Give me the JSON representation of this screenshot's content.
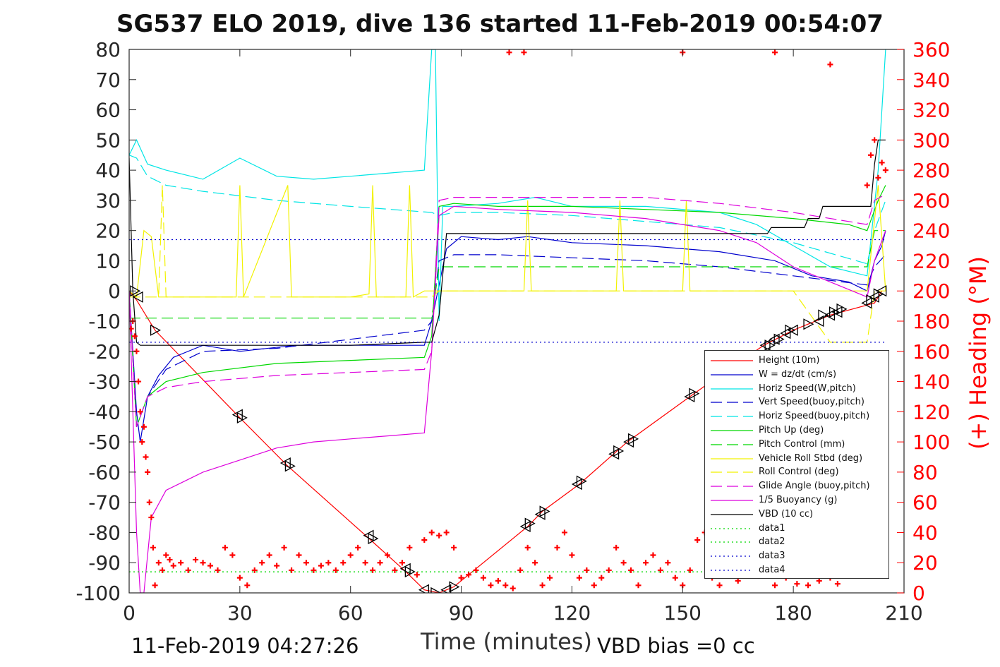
{
  "title": "SG537 ELO 2019, dive 136 started 11-Feb-2019 00:54:07",
  "xlabel": "Time (minutes)",
  "ylabel_right": "(+) Heading (°M)",
  "footer_left": "11-Feb-2019 04:27:26",
  "footer_right": "VBD bias =0 cc",
  "chart_data": {
    "type": "line",
    "title": "SG537 ELO 2019, dive 136 started 11-Feb-2019 00:54:07",
    "xlabel": "Time (minutes)",
    "ylabel": "",
    "ylabel_right": "(+) Heading (°M)",
    "xlim": [
      0,
      210
    ],
    "ylim": [
      -100,
      80
    ],
    "ylim_right": [
      0,
      360
    ],
    "xticks": [
      0,
      30,
      60,
      90,
      120,
      150,
      180,
      210
    ],
    "yticks": [
      -100,
      -90,
      -80,
      -70,
      -60,
      -50,
      -40,
      -30,
      -20,
      -10,
      0,
      10,
      20,
      30,
      40,
      50,
      60,
      70,
      80
    ],
    "yticks_right": [
      0,
      20,
      40,
      60,
      80,
      100,
      120,
      140,
      160,
      180,
      200,
      220,
      240,
      260,
      280,
      300,
      320,
      340,
      360
    ],
    "grid": false,
    "legend_position": "bottom-right",
    "colors": {
      "red": "#ff0000",
      "blue": "#0000cd",
      "cyan": "#00e5e5",
      "green": "#00d800",
      "yellow": "#f2f200",
      "magenta": "#dd00dd",
      "black": "#000000"
    },
    "series": [
      {
        "name": "Height (10m)",
        "color": "#ff0000",
        "style": "solid",
        "x": [
          0,
          2,
          7,
          30,
          43,
          65,
          75,
          80,
          84,
          88,
          108,
          112,
          122,
          135,
          152,
          160,
          172,
          180,
          190,
          202,
          204
        ],
        "y": [
          0,
          -3,
          -13,
          -42,
          -58,
          -82,
          -93,
          -99,
          -100,
          -98,
          -78,
          -73,
          -64,
          -50,
          -35,
          -28,
          -18,
          -13,
          -8,
          -4,
          0
        ]
      },
      {
        "name": "W = dz/dt (cm/s)",
        "color": "#0000cd",
        "style": "solid",
        "x": [
          0,
          1,
          2,
          3,
          5,
          8,
          12,
          20,
          30,
          45,
          60,
          75,
          80,
          82,
          84,
          86,
          90,
          100,
          108,
          120,
          140,
          160,
          175,
          185,
          195,
          200,
          202,
          204,
          205
        ],
        "y": [
          0,
          -20,
          -40,
          -50,
          -35,
          -28,
          -22,
          -18,
          -20,
          -18,
          -18,
          -18,
          -18,
          -10,
          2,
          14,
          18,
          17,
          18,
          16,
          15,
          13,
          10,
          5,
          3,
          0,
          10,
          15,
          20
        ]
      },
      {
        "name": "Horiz Speed(W,pitch)",
        "color": "#00e5e5",
        "style": "solid",
        "x": [
          0,
          2,
          5,
          10,
          20,
          30,
          40,
          50,
          60,
          70,
          80,
          82,
          83,
          84,
          85,
          88,
          100,
          110,
          120,
          140,
          160,
          170,
          180,
          190,
          200,
          203,
          205
        ],
        "y": [
          45,
          50,
          42,
          40,
          37,
          44,
          38,
          37,
          38,
          39,
          40,
          80,
          80,
          -10,
          28,
          28,
          29,
          31,
          28,
          28,
          26,
          22,
          15,
          8,
          5,
          40,
          80
        ]
      },
      {
        "name": "Vert Speed(buoy,pitch)",
        "color": "#0000cd",
        "style": "dashed",
        "x": [
          0,
          2,
          5,
          10,
          20,
          40,
          60,
          80,
          82,
          84,
          88,
          100,
          120,
          140,
          160,
          180,
          200,
          202,
          205
        ],
        "y": [
          0,
          -45,
          -35,
          -26,
          -20,
          -19,
          -16,
          -13,
          -10,
          10,
          12,
          12,
          11,
          10,
          8,
          5,
          2,
          8,
          12
        ]
      },
      {
        "name": "Horiz Speed(buoy,pitch)",
        "color": "#00e5e5",
        "style": "dashed",
        "x": [
          0,
          2,
          5,
          10,
          20,
          40,
          60,
          82,
          84,
          88,
          100,
          120,
          140,
          160,
          180,
          200,
          202,
          205
        ],
        "y": [
          45,
          44,
          38,
          35,
          33,
          30,
          28,
          26,
          25,
          26,
          26,
          25,
          23,
          21,
          16,
          9,
          20,
          30
        ]
      },
      {
        "name": "Pitch Up (deg)",
        "color": "#00d800",
        "style": "solid",
        "x": [
          0,
          2,
          5,
          10,
          20,
          40,
          60,
          80,
          82,
          84,
          88,
          100,
          120,
          140,
          160,
          180,
          195,
          200,
          203,
          205
        ],
        "y": [
          0,
          -45,
          -35,
          -30,
          -27,
          -24,
          -23,
          -22,
          -15,
          28,
          29,
          28,
          28,
          27,
          26,
          24,
          22,
          20,
          30,
          35
        ]
      },
      {
        "name": "Pitch Control (mm)",
        "color": "#00d800",
        "style": "dashed",
        "x": [
          0,
          5,
          10,
          80,
          82,
          84,
          88,
          100,
          120,
          180,
          200,
          202,
          205
        ],
        "y": [
          -9,
          -9,
          -9,
          -9,
          -9,
          8,
          8,
          8,
          8,
          8,
          8,
          20,
          20
        ]
      },
      {
        "name": "Vehicle Roll Stbd (deg)",
        "color": "#f2f200",
        "style": "solid",
        "x": [
          0,
          2,
          4,
          6,
          8,
          20,
          29,
          30,
          31,
          43,
          44,
          60,
          65,
          66,
          67,
          75,
          76,
          77,
          80,
          82,
          84,
          88,
          100,
          107,
          108,
          109,
          120,
          132,
          133,
          134,
          150,
          151,
          152,
          153,
          170,
          175,
          180,
          190,
          200,
          203,
          205
        ],
        "y": [
          0,
          -2,
          20,
          18,
          -2,
          -2,
          -2,
          35,
          -2,
          35,
          -2,
          -2,
          -1,
          35,
          -2,
          -2,
          35,
          -2,
          0,
          0,
          0,
          0,
          0,
          0,
          30,
          0,
          0,
          0,
          30,
          0,
          0,
          30,
          0,
          0,
          0,
          0,
          0,
          0,
          0,
          35,
          0
        ]
      },
      {
        "name": "Roll Control (deg)",
        "color": "#f2f200",
        "style": "dashed",
        "x": [
          0,
          5,
          8,
          9,
          10,
          80,
          82,
          84,
          88,
          100,
          120,
          180,
          190,
          195,
          200,
          202,
          205
        ],
        "y": [
          -2,
          -2,
          -2,
          35,
          -2,
          -2,
          -2,
          0,
          0,
          0,
          0,
          0,
          -17,
          -17,
          -17,
          0,
          0
        ]
      },
      {
        "name": "Glide Angle (buoy,pitch)",
        "color": "#dd00dd",
        "style": "dashed",
        "x": [
          0,
          2,
          5,
          10,
          20,
          40,
          60,
          80,
          82,
          84,
          88,
          100,
          120,
          140,
          160,
          180,
          200,
          202,
          205
        ],
        "y": [
          0,
          -45,
          -35,
          -32,
          -30,
          -28,
          -27,
          -26,
          -20,
          30,
          31,
          31,
          31,
          31,
          29,
          26,
          22,
          30,
          32
        ]
      },
      {
        "name": "1/5 Buoyancy (g)",
        "color": "#dd00dd",
        "style": "solid",
        "x": [
          0,
          2,
          3,
          4,
          6,
          10,
          20,
          30,
          40,
          50,
          60,
          70,
          80,
          82,
          84,
          88,
          100,
          120,
          140,
          160,
          170,
          180,
          190,
          200,
          202,
          205
        ],
        "y": [
          0,
          -80,
          -100,
          -100,
          -75,
          -66,
          -60,
          -56,
          -52,
          -50,
          -49,
          -48,
          -47,
          -20,
          25,
          28,
          27,
          26,
          24,
          20,
          16,
          8,
          3,
          -2,
          10,
          20
        ]
      },
      {
        "name": "VBD (10 cc)",
        "color": "#000000",
        "style": "solid",
        "x": [
          0,
          1,
          2,
          3,
          5,
          10,
          40,
          60,
          80,
          82,
          84,
          86,
          108,
          120,
          160,
          170,
          173,
          174,
          183,
          184,
          187,
          188,
          200,
          201,
          202,
          203,
          205
        ],
        "y": [
          44,
          0,
          -17,
          -18,
          -18,
          -18,
          -18,
          -18,
          -17,
          -17,
          -8,
          19,
          19,
          19,
          19,
          19,
          19,
          21,
          21,
          24,
          24,
          28,
          28,
          28,
          42,
          50,
          50
        ]
      },
      {
        "name": "data1",
        "color": "#00d800",
        "style": "dotted",
        "x": [
          0,
          205
        ],
        "y": [
          -93,
          -93
        ]
      },
      {
        "name": "data2",
        "color": "#00d800",
        "style": "dotted",
        "x": [
          0,
          205
        ],
        "y": [
          -93,
          -93
        ]
      },
      {
        "name": "data3",
        "color": "#0000cd",
        "style": "dotted",
        "x": [
          0,
          205
        ],
        "y": [
          17,
          17
        ]
      },
      {
        "name": "data4",
        "color": "#0000cd",
        "style": "dotted",
        "x": [
          0,
          205
        ],
        "y": [
          -17,
          -17
        ]
      }
    ],
    "heading_points": {
      "name": "(+) Heading (°M)",
      "axis": "right",
      "color": "#ff0000",
      "marker": "+",
      "x": [
        0.5,
        1,
        1.5,
        2,
        2.5,
        3,
        3.5,
        4,
        4.5,
        5,
        5.5,
        6,
        6.5,
        7,
        8,
        9,
        10,
        11,
        12,
        14,
        16,
        18,
        20,
        22,
        24,
        26,
        28,
        30,
        32,
        34,
        36,
        38,
        40,
        42,
        44,
        46,
        48,
        50,
        52,
        54,
        56,
        58,
        60,
        62,
        64,
        66,
        68,
        70,
        72,
        74,
        76,
        78,
        80,
        82,
        84,
        86,
        88,
        90,
        92,
        94,
        96,
        98,
        100,
        102,
        104,
        106,
        108,
        110,
        112,
        114,
        116,
        118,
        120,
        122,
        124,
        126,
        128,
        130,
        132,
        134,
        136,
        138,
        140,
        142,
        144,
        146,
        148,
        150,
        152,
        154,
        156,
        158,
        160,
        165,
        170,
        175,
        178,
        181,
        184,
        187,
        190,
        192,
        200,
        201,
        202,
        203,
        204,
        205,
        103,
        107,
        150,
        175,
        190
      ],
      "y": [
        175,
        180,
        170,
        160,
        140,
        120,
        100,
        110,
        90,
        80,
        60,
        50,
        30,
        5,
        20,
        15,
        25,
        22,
        18,
        20,
        15,
        22,
        20,
        18,
        15,
        30,
        25,
        10,
        5,
        15,
        20,
        25,
        18,
        30,
        15,
        25,
        20,
        15,
        18,
        20,
        15,
        20,
        25,
        30,
        20,
        15,
        20,
        25,
        15,
        20,
        30,
        12,
        35,
        40,
        38,
        40,
        30,
        10,
        12,
        15,
        10,
        5,
        8,
        5,
        3,
        15,
        30,
        20,
        5,
        10,
        30,
        40,
        25,
        10,
        15,
        5,
        10,
        15,
        30,
        20,
        15,
        5,
        20,
        25,
        15,
        20,
        10,
        5,
        15,
        35,
        40,
        10,
        5,
        8,
        12,
        5,
        10,
        6,
        5,
        8,
        10,
        6,
        270,
        290,
        300,
        275,
        285,
        280,
        358,
        358,
        358,
        358,
        350
      ]
    },
    "triangle_markers": {
      "color": "#000000",
      "on_series": "Height (10m)",
      "x": [
        1.5,
        2.5,
        7,
        29.5,
        30.5,
        42.5,
        43.5,
        65,
        66,
        75,
        76,
        80,
        83,
        86,
        88,
        107.5,
        108.5,
        111.5,
        112.5,
        121.5,
        122.5,
        131.5,
        132.5,
        135.5,
        136.5,
        152,
        153,
        172.5,
        173.5,
        175,
        176,
        178,
        179,
        180,
        184,
        187,
        188,
        190,
        191,
        192,
        193,
        200,
        201,
        202,
        203,
        204
      ],
      "y": [
        0,
        -2,
        -13,
        -41,
        -42,
        -57,
        -58,
        -81,
        -82,
        -92,
        -93,
        -99,
        -100,
        -99,
        -98,
        -78,
        -77,
        -74,
        -73,
        -64,
        -63,
        -54,
        -53,
        -50,
        -49,
        -35,
        -34,
        -18,
        -18,
        -16,
        -16,
        -14,
        -13,
        -13,
        -11,
        -10,
        -8,
        -8,
        -7,
        -7,
        -6,
        -4,
        -3,
        -2,
        -1,
        0
      ]
    }
  }
}
